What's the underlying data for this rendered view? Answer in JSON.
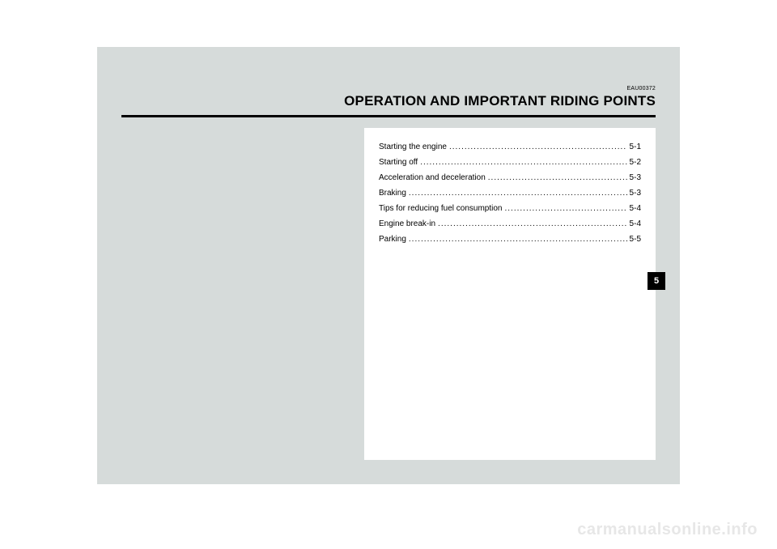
{
  "header": {
    "doc_code": "EAU00372",
    "chapter_title": "OPERATION AND IMPORTANT RIDING POINTS"
  },
  "toc": {
    "entries": [
      {
        "label": "Starting the engine",
        "page": "5-1"
      },
      {
        "label": "Starting off",
        "page": "5-2"
      },
      {
        "label": "Acceleration and deceleration",
        "page": "5-3"
      },
      {
        "label": "Braking",
        "page": "5-3"
      },
      {
        "label": "Tips for reducing fuel consumption",
        "page": "5-4"
      },
      {
        "label": "Engine break-in",
        "page": "5-4"
      },
      {
        "label": "Parking",
        "page": "5-5"
      }
    ]
  },
  "tab": {
    "number": "5"
  },
  "watermark": {
    "text": "carmanualsonline.info"
  },
  "colors": {
    "page_bg": "#d6dbda",
    "content_bg": "#ffffff",
    "text": "#000000",
    "tab_bg": "#000000",
    "tab_fg": "#ffffff",
    "watermark": "#e7e7e7"
  }
}
